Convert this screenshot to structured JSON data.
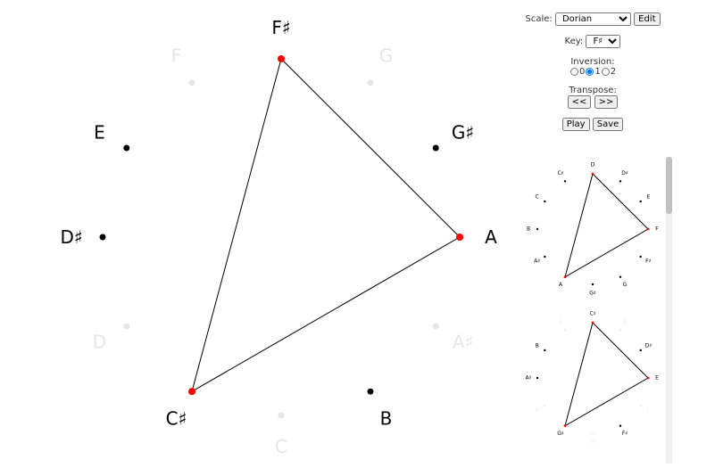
{
  "controls": {
    "scale_label": "Scale:",
    "scale_value": "Dorian",
    "edit": "Edit",
    "key_label": "Key:",
    "key_value": "F♯",
    "inversion_label": "Inversion:",
    "inversion_options": [
      "0",
      "1",
      "2"
    ],
    "inversion_checked": 1,
    "transpose_label": "Transpose:",
    "transpose_buttons": [
      "<<",
      ">>"
    ],
    "play": "Play",
    "save": "Save"
  },
  "main_wheel": {
    "notes": [
      {
        "label": "F♯",
        "state": "chord"
      },
      {
        "label": "G",
        "state": "off"
      },
      {
        "label": "G♯",
        "state": "scale"
      },
      {
        "label": "A",
        "state": "chord"
      },
      {
        "label": "A♯",
        "state": "off"
      },
      {
        "label": "B",
        "state": "scale"
      },
      {
        "label": "C",
        "state": "off"
      },
      {
        "label": "C♯",
        "state": "chord"
      },
      {
        "label": "D",
        "state": "off"
      },
      {
        "label": "D♯",
        "state": "scale"
      },
      {
        "label": "E",
        "state": "scale"
      },
      {
        "label": "F",
        "state": "off"
      }
    ]
  },
  "thumbnails": [
    {
      "notes": [
        {
          "label": "D",
          "state": "chord"
        },
        {
          "label": "D♯",
          "state": "scale"
        },
        {
          "label": "E",
          "state": "scale"
        },
        {
          "label": "F",
          "state": "chord"
        },
        {
          "label": "F♯",
          "state": "scale"
        },
        {
          "label": "G",
          "state": "scale"
        },
        {
          "label": "G♯",
          "state": "scale"
        },
        {
          "label": "A",
          "state": "chord"
        },
        {
          "label": "A♯",
          "state": "scale"
        },
        {
          "label": "B",
          "state": "scale"
        },
        {
          "label": "C",
          "state": "scale"
        },
        {
          "label": "C♯",
          "state": "scale"
        }
      ]
    },
    {
      "notes": [
        {
          "label": "C♯",
          "state": "chord"
        },
        {
          "label": "D",
          "state": "off"
        },
        {
          "label": "D♯",
          "state": "scale"
        },
        {
          "label": "E",
          "state": "chord"
        },
        {
          "label": "F",
          "state": "off"
        },
        {
          "label": "F♯",
          "state": "scale"
        },
        {
          "label": "G",
          "state": "off"
        },
        {
          "label": "G♯",
          "state": "chord"
        },
        {
          "label": "A",
          "state": "off"
        },
        {
          "label": "A♯",
          "state": "scale"
        },
        {
          "label": "B",
          "state": "scale"
        },
        {
          "label": "C",
          "state": "off"
        }
      ]
    }
  ]
}
